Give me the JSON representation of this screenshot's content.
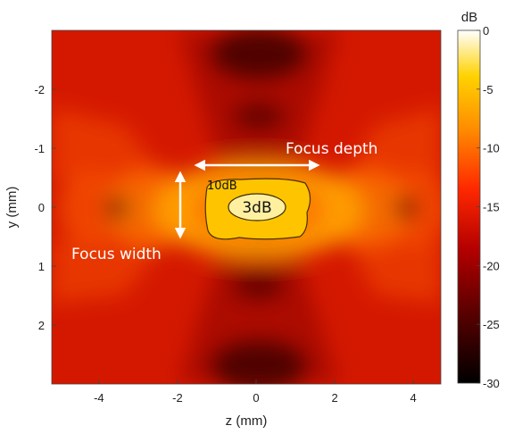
{
  "chart_data": {
    "type": "heatmap",
    "title": "",
    "xlabel": "z (mm)",
    "ylabel": "y (mm)",
    "xlim": [
      -5.2,
      4.7
    ],
    "ylim": [
      -3.0,
      3.0
    ],
    "y_reversed": true,
    "xticks": [
      -4,
      -2,
      0,
      2,
      4
    ],
    "xtick_labels": [
      "-4",
      "-2",
      "0",
      "2",
      "4"
    ],
    "yticks": [
      -2,
      -1,
      0,
      1,
      2
    ],
    "ytick_labels": [
      "-2",
      "-1",
      "0",
      "1",
      "2"
    ],
    "colorbar": {
      "label": "dB",
      "range": [
        -30,
        0
      ],
      "ticks": [
        0,
        -5,
        -10,
        -15,
        -20,
        -25,
        -30
      ],
      "tick_labels": [
        "0",
        "-5",
        "-10",
        "-15",
        "-20",
        "-25",
        "-30"
      ],
      "colormap": "hot",
      "colors": [
        "#000000",
        "#5a0000",
        "#b40000",
        "#ff2800",
        "#ff8c00",
        "#ffd200",
        "#ffffff"
      ]
    },
    "contours": [
      {
        "label": "10dB",
        "level_db": -10,
        "z_center": 0.0,
        "y_center": 0.05,
        "half_width_z": 1.3,
        "half_width_y": 0.55
      },
      {
        "label": "3dB",
        "level_db": -3,
        "z_center": 0.0,
        "y_center": 0.0,
        "half_width_z": 0.65,
        "half_width_y": 0.2
      }
    ],
    "annotations": [
      {
        "text": "Focus depth",
        "arrow_from": [
          -1.6,
          -0.7
        ],
        "arrow_to": [
          1.4,
          -0.7
        ]
      },
      {
        "text": "Focus width",
        "arrow_from": [
          -2.0,
          -0.6
        ],
        "arrow_to": [
          -2.0,
          0.55
        ]
      }
    ]
  }
}
